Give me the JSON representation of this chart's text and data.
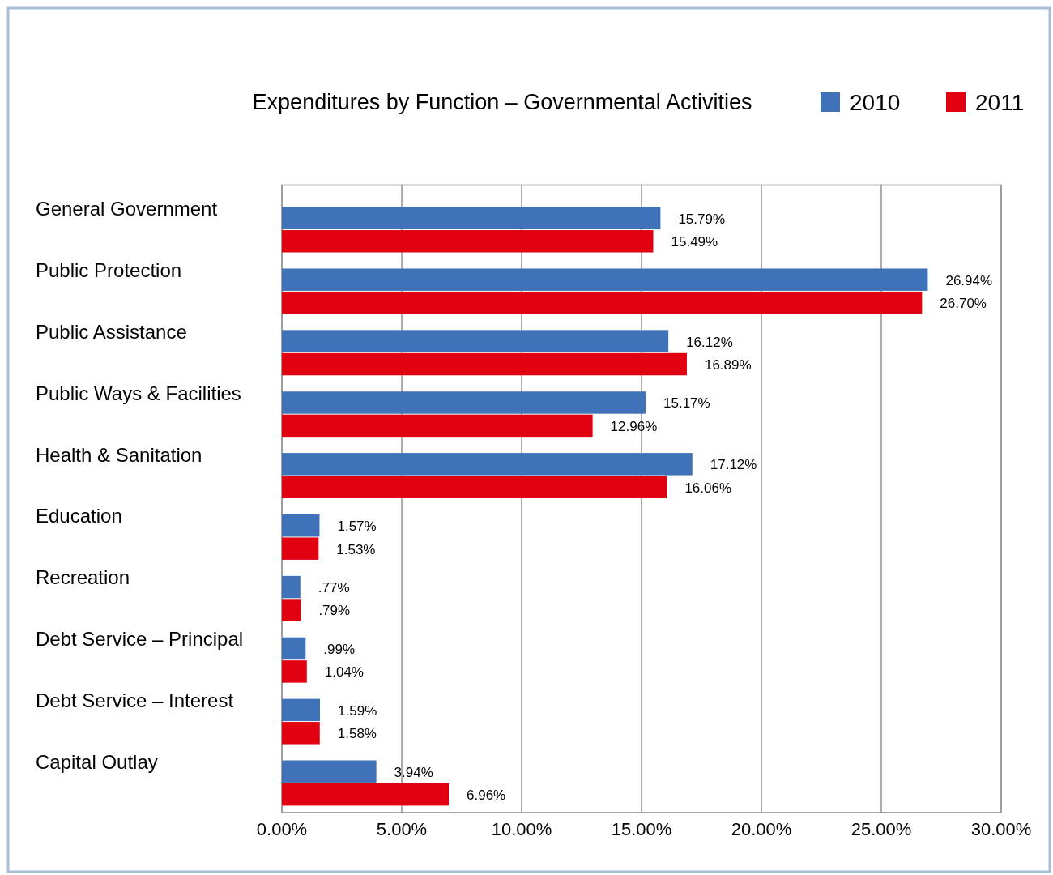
{
  "chart_data": {
    "type": "bar",
    "orientation": "horizontal",
    "title": "Expenditures by Function – Governmental Activities",
    "categories": [
      "General Government",
      "Public Protection",
      "Public Assistance",
      "Public Ways & Facilities",
      "Health & Sanitation",
      "Education",
      "Recreation",
      "Debt Service – Principal",
      "Debt Service – Interest",
      "Capital Outlay"
    ],
    "series": [
      {
        "name": "2010",
        "color": "#3f72b8",
        "values": [
          15.79,
          26.94,
          16.12,
          15.17,
          17.12,
          1.57,
          0.77,
          0.99,
          1.59,
          3.94
        ],
        "value_labels": [
          "15.79%",
          "26.94%",
          "16.12%",
          "15.17%",
          "17.12%",
          "1.57%",
          ".77%",
          ".99%",
          "1.59%",
          "3.94%"
        ]
      },
      {
        "name": "2011",
        "color": "#e00010",
        "values": [
          15.49,
          26.7,
          16.89,
          12.96,
          16.06,
          1.53,
          0.79,
          1.04,
          1.58,
          6.96
        ],
        "value_labels": [
          "15.49%",
          "26.70%",
          "16.89%",
          "12.96%",
          "16.06%",
          "1.53%",
          ".79%",
          "1.04%",
          "1.58%",
          "6.96%"
        ]
      }
    ],
    "xlim": [
      0,
      30
    ],
    "xticks": [
      {
        "value": 0,
        "label": "0.00%"
      },
      {
        "value": 5,
        "label": "5.00%"
      },
      {
        "value": 10,
        "label": "10.00%"
      },
      {
        "value": 15,
        "label": "15.00%"
      },
      {
        "value": 20,
        "label": "20.00%"
      },
      {
        "value": 25,
        "label": "25.00%"
      },
      {
        "value": 30,
        "label": "30.00%"
      }
    ],
    "grid": "x",
    "legend": "top right"
  }
}
